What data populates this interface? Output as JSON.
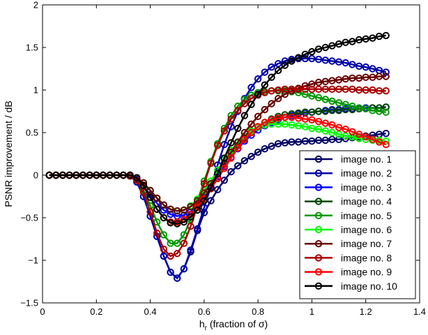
{
  "chart_data": {
    "type": "line",
    "xlabel_main": "h",
    "xlabel_sub": "r",
    "xlabel_rest": " (fraction of σ)",
    "ylabel": "PSNR improvement / dB",
    "xlim": [
      0,
      1.4
    ],
    "ylim": [
      -1.5,
      2
    ],
    "xticks": [
      0,
      0.2,
      0.4,
      0.6,
      0.8,
      1,
      1.2,
      1.4
    ],
    "xtick_labels": [
      "0",
      "0.2",
      "0.4",
      "0.6",
      "0.8",
      "1",
      "1.2",
      "1.4"
    ],
    "yticks": [
      -1.5,
      -1,
      -0.5,
      0,
      0.5,
      1,
      1.5,
      2
    ],
    "ytick_labels": [
      "−1.5",
      "−1",
      "−0.5",
      "0",
      "0.5",
      "1",
      "1.5",
      "2"
    ],
    "grid": false,
    "legend_position": "bottom-right",
    "marker": "circle",
    "x": [
      0.025,
      0.05,
      0.075,
      0.1,
      0.125,
      0.15,
      0.175,
      0.2,
      0.225,
      0.25,
      0.275,
      0.3,
      0.325,
      0.35,
      0.375,
      0.4,
      0.425,
      0.45,
      0.475,
      0.5,
      0.525,
      0.55,
      0.575,
      0.6,
      0.625,
      0.65,
      0.675,
      0.7,
      0.725,
      0.75,
      0.775,
      0.8,
      0.825,
      0.85,
      0.875,
      0.9,
      0.925,
      0.95,
      0.975,
      1.0,
      1.025,
      1.05,
      1.075,
      1.1,
      1.125,
      1.15,
      1.175,
      1.2,
      1.225,
      1.25,
      1.275
    ],
    "series": [
      {
        "name": "image no. 1",
        "color": "#000066",
        "values": [
          0,
          0,
          0,
          0,
          0,
          0,
          0,
          0,
          0,
          0,
          0,
          0,
          -0.01,
          -0.08,
          -0.25,
          -0.48,
          -0.72,
          -0.95,
          -1.14,
          -1.21,
          -1.1,
          -0.9,
          -0.65,
          -0.44,
          -0.3,
          -0.17,
          -0.06,
          0.04,
          0.11,
          0.17,
          0.22,
          0.27,
          0.31,
          0.34,
          0.37,
          0.38,
          0.39,
          0.39,
          0.4,
          0.4,
          0.41,
          0.41,
          0.42,
          0.42,
          0.43,
          0.44,
          0.45,
          0.46,
          0.47,
          0.48,
          0.49
        ]
      },
      {
        "name": "image no. 2",
        "color": "#0000aa",
        "values": [
          0,
          0,
          0,
          0,
          0,
          0,
          0,
          0,
          0,
          0,
          0,
          0,
          -0.01,
          -0.08,
          -0.25,
          -0.48,
          -0.72,
          -0.95,
          -1.14,
          -1.21,
          -1.1,
          -0.88,
          -0.63,
          -0.38,
          -0.13,
          0.12,
          0.36,
          0.57,
          0.75,
          0.9,
          1.03,
          1.13,
          1.21,
          1.27,
          1.31,
          1.34,
          1.36,
          1.37,
          1.37,
          1.37,
          1.36,
          1.35,
          1.34,
          1.33,
          1.32,
          1.3,
          1.28,
          1.27,
          1.25,
          1.23,
          1.21
        ]
      },
      {
        "name": "image no. 3",
        "color": "#0000ff",
        "values": [
          0,
          0,
          0,
          0,
          0,
          0,
          0,
          0,
          0,
          0,
          0,
          0,
          -0.01,
          -0.05,
          -0.13,
          -0.23,
          -0.33,
          -0.41,
          -0.46,
          -0.48,
          -0.47,
          -0.43,
          -0.35,
          -0.25,
          -0.14,
          -0.02,
          0.1,
          0.21,
          0.31,
          0.4,
          0.47,
          0.53,
          0.58,
          0.62,
          0.65,
          0.68,
          0.7,
          0.72,
          0.73,
          0.74,
          0.75,
          0.76,
          0.77,
          0.77,
          0.78,
          0.78,
          0.78,
          0.79,
          0.79,
          0.79,
          0.8
        ]
      },
      {
        "name": "image no. 4",
        "color": "#004400",
        "values": [
          0,
          0,
          0,
          0,
          0,
          0,
          0,
          0,
          0,
          0,
          0,
          0,
          0,
          -0.03,
          -0.09,
          -0.18,
          -0.27,
          -0.35,
          -0.4,
          -0.42,
          -0.41,
          -0.37,
          -0.3,
          -0.21,
          -0.1,
          0.02,
          0.14,
          0.25,
          0.35,
          0.44,
          0.51,
          0.57,
          0.62,
          0.66,
          0.69,
          0.71,
          0.72,
          0.73,
          0.74,
          0.74,
          0.75,
          0.75,
          0.76,
          0.76,
          0.77,
          0.77,
          0.78,
          0.78,
          0.79,
          0.79,
          0.8
        ]
      },
      {
        "name": "image no. 5",
        "color": "#009900",
        "values": [
          0,
          0,
          0,
          0,
          0,
          0,
          0,
          0,
          0,
          0,
          0,
          0,
          -0.01,
          -0.06,
          -0.18,
          -0.36,
          -0.55,
          -0.7,
          -0.8,
          -0.8,
          -0.7,
          -0.52,
          -0.3,
          -0.07,
          0.16,
          0.37,
          0.55,
          0.7,
          0.81,
          0.89,
          0.94,
          0.97,
          0.98,
          0.99,
          0.99,
          0.99,
          0.98,
          0.97,
          0.95,
          0.93,
          0.91,
          0.89,
          0.87,
          0.85,
          0.83,
          0.81,
          0.79,
          0.78,
          0.76,
          0.75,
          0.74
        ]
      },
      {
        "name": "image no. 6",
        "color": "#00ff00",
        "values": [
          0,
          0,
          0,
          0,
          0,
          0,
          0,
          0,
          0,
          0,
          0,
          0,
          0,
          -0.03,
          -0.09,
          -0.18,
          -0.27,
          -0.35,
          -0.4,
          -0.42,
          -0.41,
          -0.36,
          -0.28,
          -0.18,
          -0.07,
          0.06,
          0.18,
          0.29,
          0.38,
          0.46,
          0.52,
          0.56,
          0.59,
          0.6,
          0.6,
          0.6,
          0.59,
          0.58,
          0.57,
          0.55,
          0.54,
          0.52,
          0.5,
          0.48,
          0.46,
          0.45,
          0.43,
          0.42,
          0.41,
          0.41,
          0.4
        ]
      },
      {
        "name": "image no. 7",
        "color": "#660000",
        "values": [
          0,
          0,
          0,
          0,
          0,
          0,
          0,
          0,
          0,
          0,
          0,
          0,
          0,
          -0.03,
          -0.09,
          -0.18,
          -0.27,
          -0.35,
          -0.4,
          -0.42,
          -0.41,
          -0.37,
          -0.3,
          -0.21,
          -0.1,
          0.02,
          0.14,
          0.27,
          0.39,
          0.5,
          0.6,
          0.69,
          0.77,
          0.84,
          0.9,
          0.95,
          0.99,
          1.02,
          1.05,
          1.07,
          1.09,
          1.1,
          1.11,
          1.12,
          1.13,
          1.14,
          1.14,
          1.15,
          1.15,
          1.16,
          1.16
        ]
      },
      {
        "name": "image no. 8",
        "color": "#aa0000",
        "values": [
          0,
          0,
          0,
          0,
          0,
          0,
          0,
          0,
          0,
          0,
          0,
          0,
          -0.01,
          -0.06,
          -0.2,
          -0.43,
          -0.68,
          -0.87,
          -0.95,
          -0.92,
          -0.8,
          -0.6,
          -0.36,
          -0.1,
          0.14,
          0.35,
          0.52,
          0.66,
          0.76,
          0.84,
          0.9,
          0.94,
          0.97,
          0.99,
          1.0,
          1.01,
          1.01,
          1.01,
          1.01,
          1.01,
          1.01,
          1.01,
          1.01,
          1.01,
          1.01,
          1.01,
          1.0,
          1.0,
          1.0,
          0.99,
          0.99
        ]
      },
      {
        "name": "image no. 9",
        "color": "#ff0000",
        "values": [
          0,
          0,
          0,
          0,
          0,
          0,
          0,
          0,
          0,
          0,
          0,
          0,
          0,
          -0.03,
          -0.12,
          -0.26,
          -0.4,
          -0.5,
          -0.55,
          -0.55,
          -0.52,
          -0.46,
          -0.38,
          -0.28,
          -0.16,
          -0.04,
          0.08,
          0.2,
          0.32,
          0.42,
          0.5,
          0.57,
          0.62,
          0.65,
          0.67,
          0.68,
          0.68,
          0.67,
          0.66,
          0.65,
          0.63,
          0.61,
          0.59,
          0.56,
          0.54,
          0.51,
          0.48,
          0.45,
          0.42,
          0.39,
          0.36
        ]
      },
      {
        "name": "image no. 10",
        "color": "#000000",
        "values": [
          0,
          0,
          0,
          0,
          0,
          0,
          0,
          0,
          0,
          0,
          0,
          0,
          0,
          -0.03,
          -0.12,
          -0.26,
          -0.4,
          -0.5,
          -0.56,
          -0.57,
          -0.55,
          -0.49,
          -0.41,
          -0.3,
          -0.15,
          0.02,
          0.2,
          0.38,
          0.55,
          0.7,
          0.83,
          0.95,
          1.06,
          1.15,
          1.23,
          1.29,
          1.34,
          1.38,
          1.42,
          1.45,
          1.48,
          1.5,
          1.52,
          1.54,
          1.56,
          1.57,
          1.59,
          1.6,
          1.61,
          1.63,
          1.64
        ]
      }
    ]
  }
}
